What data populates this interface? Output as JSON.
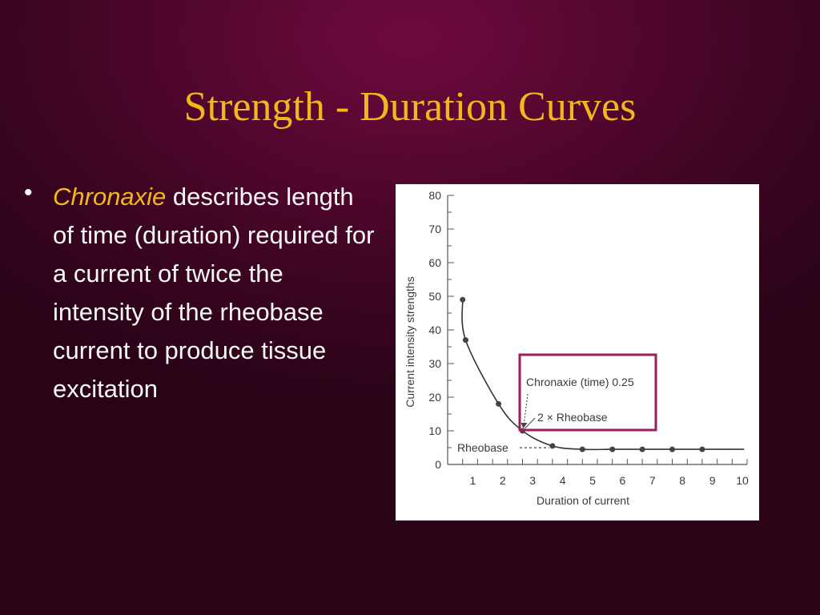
{
  "slide": {
    "title": "Strength - Duration Curves",
    "bullet": {
      "term": "Chronaxie",
      "text": " describes length of time (duration) required for a current of twice the intensity of the rheobase current to produce tissue excitation"
    },
    "colors": {
      "title": "#f2b81b",
      "term": "#f2b81b",
      "body_text": "#f7f7f7",
      "background": "#55072f",
      "highlight_box": "#9b1d5a"
    }
  },
  "chart_data": {
    "type": "line",
    "xlabel": "Duration of current",
    "ylabel": "Current intensity strengths",
    "xlim": [
      0,
      10
    ],
    "ylim": [
      0,
      80
    ],
    "x_ticks": [
      1,
      2,
      3,
      4,
      5,
      6,
      7,
      8,
      9,
      10
    ],
    "y_ticks": [
      0,
      10,
      20,
      30,
      40,
      50,
      60,
      70,
      80
    ],
    "series": [
      {
        "x": [
          0.5,
          0.6,
          1.7,
          2.5,
          3.5,
          4.5,
          5.5,
          6.5,
          7.5,
          8.5,
          9.5
        ],
        "y": [
          49,
          37,
          18,
          10,
          5.5,
          4.5,
          4.5,
          4.5,
          4.5,
          4.5,
          4.5
        ]
      }
    ],
    "rheobase_value": 4.5,
    "annotations": {
      "chronaxie": "Chronaxie (time) 0.25",
      "two_rheobase": "2 × Rheobase",
      "rheobase": "Rheobase"
    },
    "grid": false
  }
}
